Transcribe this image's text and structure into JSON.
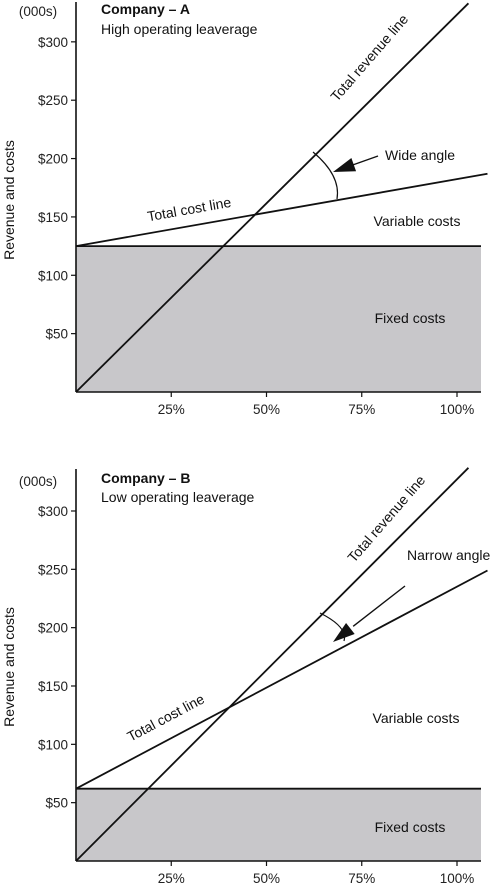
{
  "chart_data": [
    {
      "type": "line",
      "title": "Company – A",
      "subtitle": "High operating leaverage",
      "ylabel": "Revenue and costs",
      "y_unit_label": "(000s)",
      "ylim": [
        0,
        330
      ],
      "xlim": [
        0,
        108
      ],
      "y_ticks": [
        50,
        100,
        150,
        200,
        250,
        300
      ],
      "y_tick_labels": [
        "$50",
        "$100",
        "$150",
        "$200",
        "$250",
        "$300"
      ],
      "x_ticks": [
        25,
        50,
        75,
        100
      ],
      "x_tick_labels": [
        "25%",
        "50%",
        "75%",
        "100%"
      ],
      "fixed_costs": 125,
      "series": [
        {
          "name": "Total revenue line",
          "x": [
            0,
            103
          ],
          "y": [
            0,
            333
          ]
        },
        {
          "name": "Total cost line",
          "x": [
            0,
            108
          ],
          "y": [
            125,
            187
          ]
        }
      ],
      "annotations": {
        "revenue_line": "Total revenue line",
        "cost_line": "Total cost line",
        "angle": "Wide angle",
        "variable": "Variable costs",
        "fixed": "Fixed costs"
      }
    },
    {
      "type": "line",
      "title": "Company – B",
      "subtitle": "Low operating leaverage",
      "ylabel": "Revenue and costs",
      "y_unit_label": "(000s)",
      "ylim": [
        0,
        330
      ],
      "xlim": [
        0,
        108
      ],
      "y_ticks": [
        50,
        100,
        150,
        200,
        250,
        300
      ],
      "y_tick_labels": [
        "$50",
        "$100",
        "$150",
        "$200",
        "$250",
        "$300"
      ],
      "x_ticks": [
        25,
        50,
        75,
        100
      ],
      "x_tick_labels": [
        "25%",
        "50%",
        "75%",
        "100%"
      ],
      "fixed_costs": 62,
      "series": [
        {
          "name": "Total revenue line",
          "x": [
            0,
            103
          ],
          "y": [
            0,
            337
          ]
        },
        {
          "name": "Total cost line",
          "x": [
            0,
            108
          ],
          "y": [
            62,
            249
          ]
        }
      ],
      "annotations": {
        "revenue_line": "Total revenue line",
        "cost_line": "Total cost line",
        "angle": "Narrow angle",
        "variable": "Variable costs",
        "fixed": "Fixed costs"
      }
    }
  ],
  "colors": {
    "fixed_fill": "#c8c7ca",
    "line": "#111111",
    "background": "#ffffff"
  }
}
